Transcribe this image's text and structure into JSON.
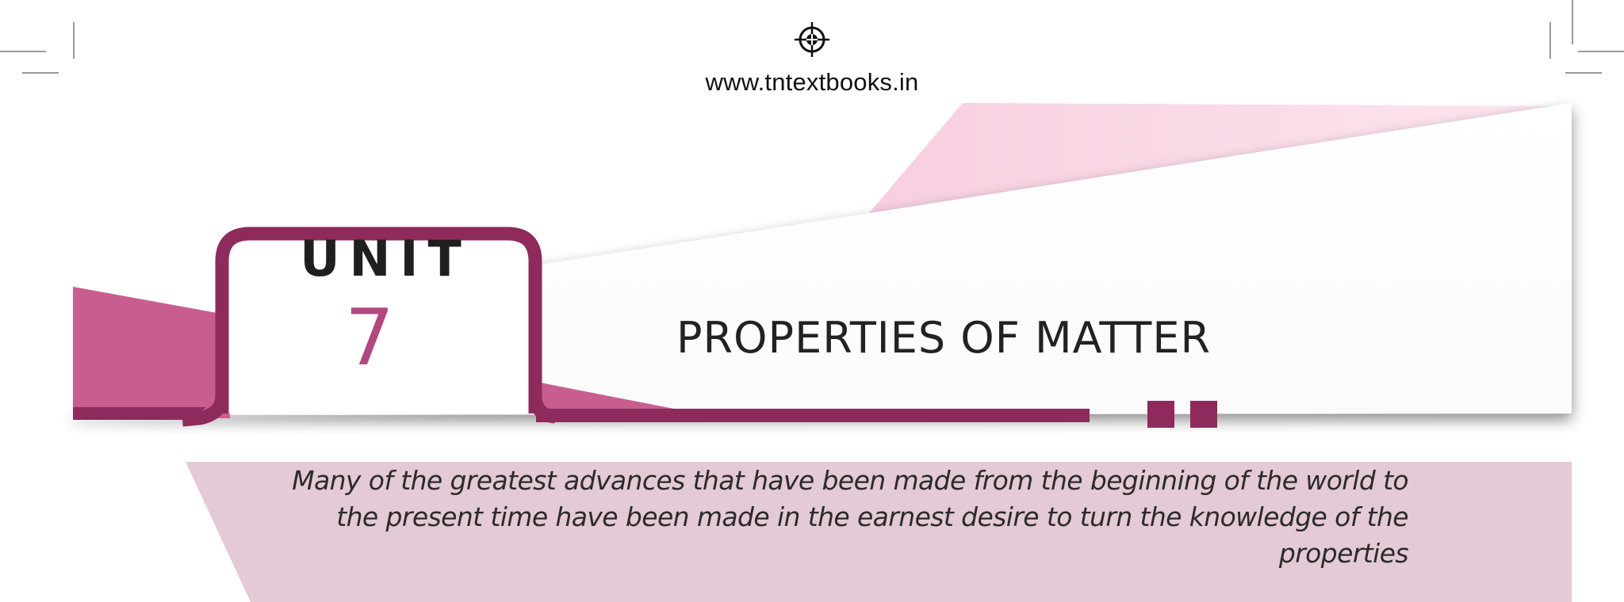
{
  "header": {
    "website": "www.tntextbooks.in"
  },
  "unit_badge": {
    "label": "UNIT",
    "number": "7"
  },
  "chapter": {
    "title": "PROPERTIES OF MATTER"
  },
  "quote": {
    "text": "Many of the greatest advances that have been made from the beginning of the world to the present time have been made in the earnest desire to turn the knowledge of the properties"
  },
  "icons": {
    "registration_mark": "crosshair-registration-icon",
    "crop_marks": "crop-mark-icon"
  },
  "colors": {
    "accent_dark": "#8e2a5c",
    "accent_mid": "#c85e90",
    "accent_light": "#fbdde8",
    "quote_band": "#e4c9d6"
  }
}
